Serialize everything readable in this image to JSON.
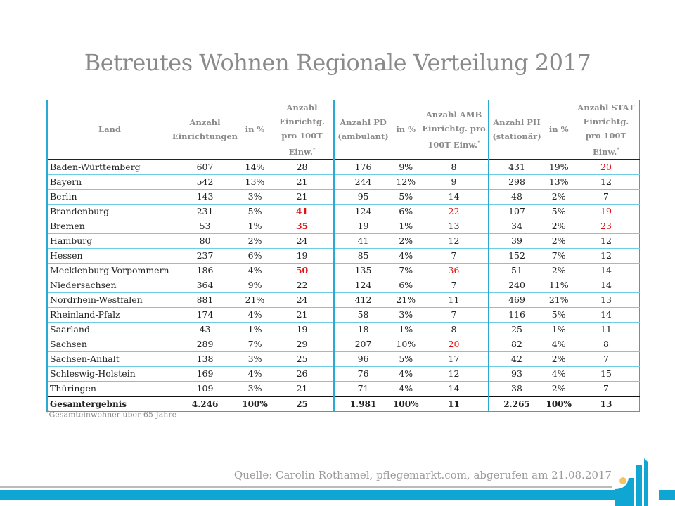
{
  "title": "Betreutes Wohnen Regionale Verteilung 2017",
  "table": {
    "headers": [
      {
        "text": "Land",
        "star": false
      },
      {
        "text": "Anzahl Einrichtungen",
        "star": false
      },
      {
        "text": "in %",
        "star": false
      },
      {
        "text": "Anzahl Einrichtg. pro 100T Einw.",
        "star": true
      },
      {
        "text": "Anzahl PD (ambulant)",
        "star": false
      },
      {
        "text": "in %",
        "star": false
      },
      {
        "text": "Anzahl AMB Einrichtg. pro 100T Einw.",
        "star": true
      },
      {
        "text": "Anzahl PH (stationär)",
        "star": false
      },
      {
        "text": "in %",
        "star": false
      },
      {
        "text": "Anzahl STAT Einrichtg. pro 100T Einw.",
        "star": true
      }
    ],
    "rows": [
      [
        "Baden-Württemberg",
        "607",
        "14%",
        "28",
        "176",
        "9%",
        "8",
        "431",
        "19%",
        "20"
      ],
      [
        "Bayern",
        "542",
        "13%",
        "21",
        "244",
        "12%",
        "9",
        "298",
        "13%",
        "12"
      ],
      [
        "Berlin",
        "143",
        "3%",
        "21",
        "95",
        "5%",
        "14",
        "48",
        "2%",
        "7"
      ],
      [
        "Brandenburg",
        "231",
        "5%",
        "41",
        "124",
        "6%",
        "22",
        "107",
        "5%",
        "19"
      ],
      [
        "Bremen",
        "53",
        "1%",
        "35",
        "19",
        "1%",
        "13",
        "34",
        "2%",
        "23"
      ],
      [
        "Hamburg",
        "80",
        "2%",
        "24",
        "41",
        "2%",
        "12",
        "39",
        "2%",
        "12"
      ],
      [
        "Hessen",
        "237",
        "6%",
        "19",
        "85",
        "4%",
        "7",
        "152",
        "7%",
        "12"
      ],
      [
        "Mecklenburg-Vorpommern",
        "186",
        "4%",
        "50",
        "135",
        "7%",
        "36",
        "51",
        "2%",
        "14"
      ],
      [
        "Niedersachsen",
        "364",
        "9%",
        "22",
        "124",
        "6%",
        "7",
        "240",
        "11%",
        "14"
      ],
      [
        "Nordrhein-Westfalen",
        "881",
        "21%",
        "24",
        "412",
        "21%",
        "11",
        "469",
        "21%",
        "13"
      ],
      [
        "Rheinland-Pfalz",
        "174",
        "4%",
        "21",
        "58",
        "3%",
        "7",
        "116",
        "5%",
        "14"
      ],
      [
        "Saarland",
        "43",
        "1%",
        "19",
        "18",
        "1%",
        "8",
        "25",
        "1%",
        "11"
      ],
      [
        "Sachsen",
        "289",
        "7%",
        "29",
        "207",
        "10%",
        "20",
        "82",
        "4%",
        "8"
      ],
      [
        "Sachsen-Anhalt",
        "138",
        "3%",
        "25",
        "96",
        "5%",
        "17",
        "42",
        "2%",
        "7"
      ],
      [
        "Schleswig-Holstein",
        "169",
        "4%",
        "26",
        "76",
        "4%",
        "12",
        "93",
        "4%",
        "15"
      ],
      [
        "Thüringen",
        "109",
        "3%",
        "21",
        "71",
        "4%",
        "14",
        "38",
        "2%",
        "7"
      ]
    ],
    "total": [
      "Gesamtergebnis",
      "4.246",
      "100%",
      "25",
      "1.981",
      "100%",
      "11",
      "2.265",
      "100%",
      "13"
    ],
    "highlights_bold_red": [
      [
        3,
        3
      ],
      [
        4,
        3
      ],
      [
        7,
        3
      ]
    ],
    "highlights_red": [
      [
        3,
        6
      ],
      [
        7,
        6
      ],
      [
        12,
        6
      ],
      [
        0,
        9
      ],
      [
        3,
        9
      ],
      [
        4,
        9
      ]
    ]
  },
  "footnote": "Gesamteinwohner über 65 Jahre",
  "footnote_mark": "*",
  "source": "Quelle: Carolin Rothamel, pflegemarkt.com, abgerufen am 21.08.2017",
  "colors": {
    "accent": "#0fa6d3",
    "highlight": "#e01010",
    "text_gray": "#8a8a8a",
    "logo_dot": "#f5c463"
  }
}
